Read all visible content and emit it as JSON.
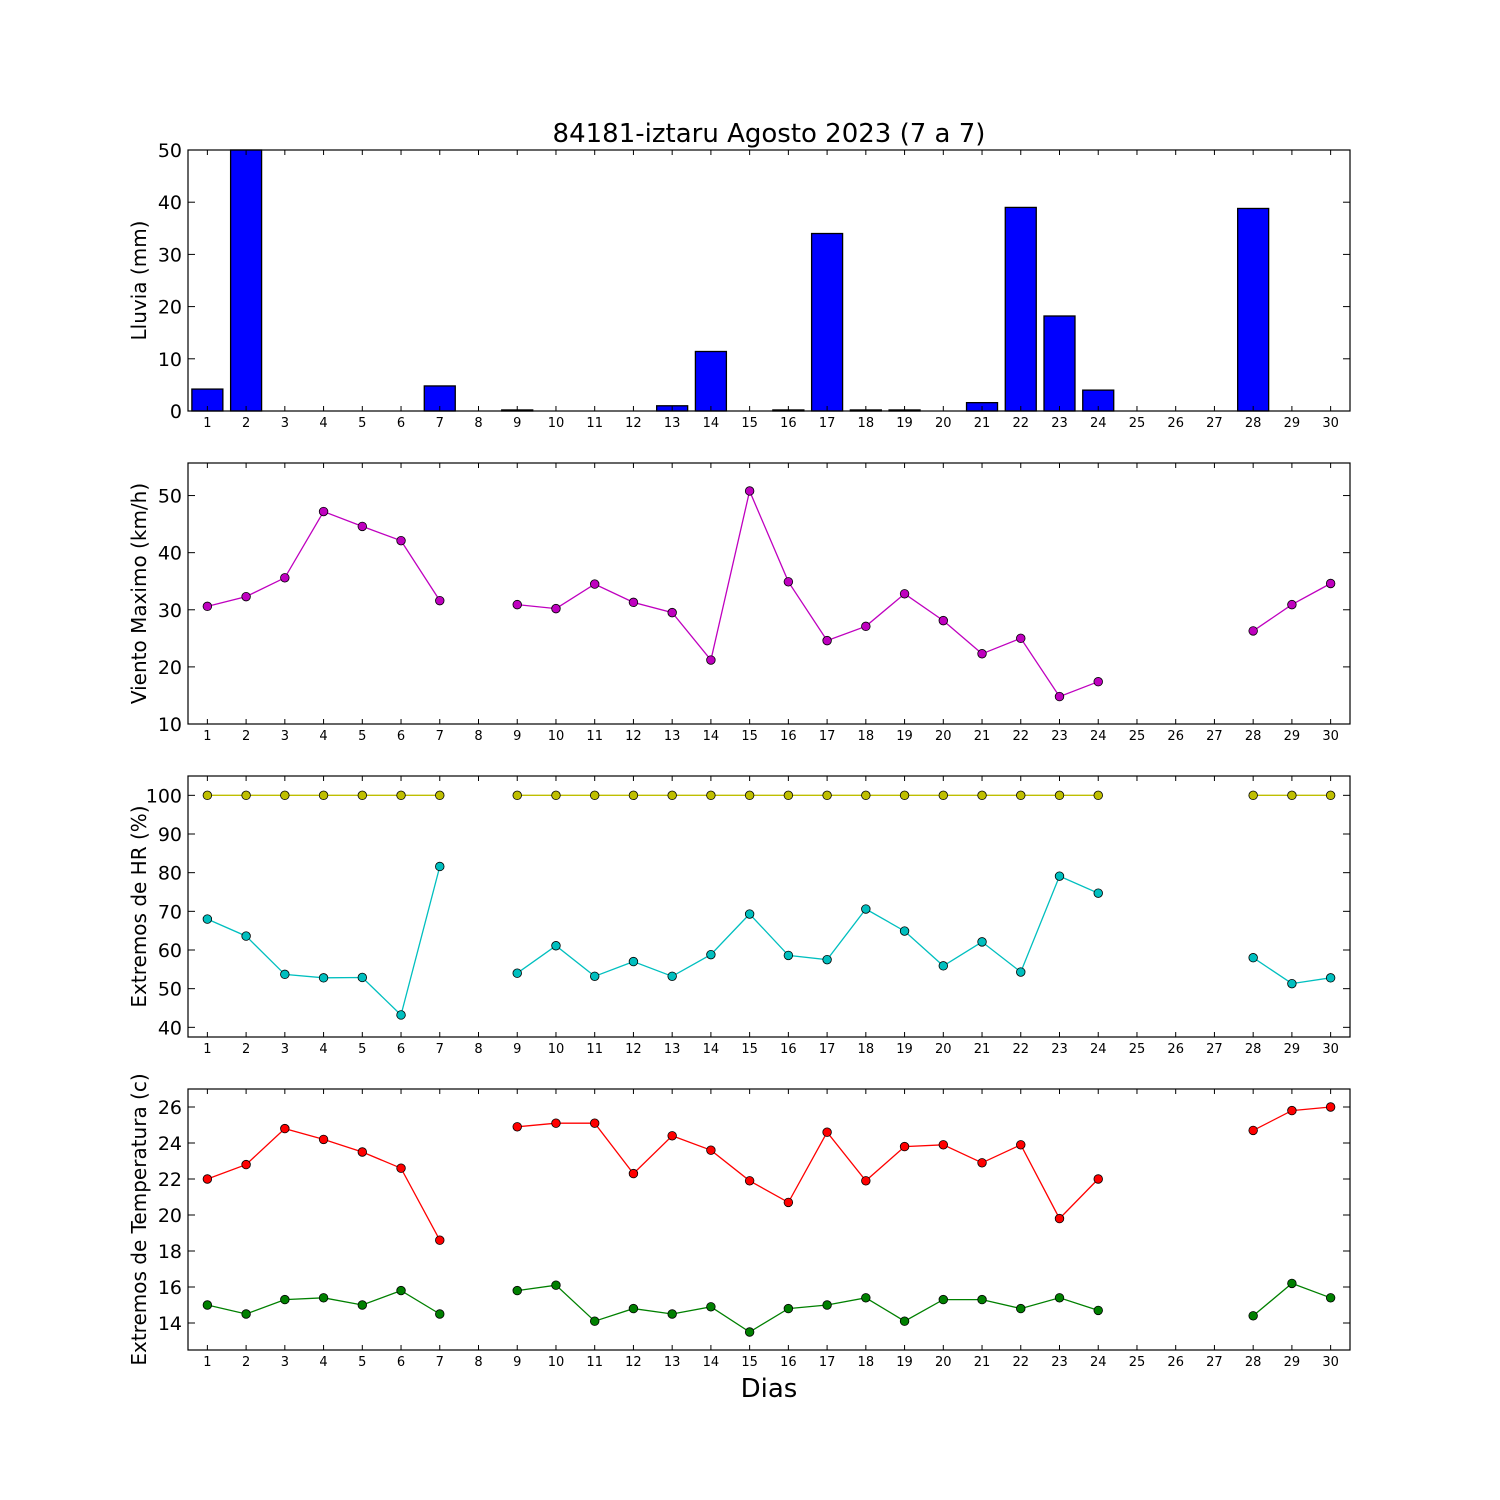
{
  "title": "84181-iztaru Agosto 2023  (7 a 7)",
  "xlabel": "Dias",
  "chart_data": [
    {
      "type": "bar",
      "ylabel": "Lluvia (mm)",
      "ylim": [
        0,
        50
      ],
      "yticks": [
        0,
        10,
        20,
        30,
        40,
        50
      ],
      "categories": [
        1,
        2,
        3,
        4,
        5,
        6,
        7,
        8,
        9,
        10,
        11,
        12,
        13,
        14,
        15,
        16,
        17,
        18,
        19,
        20,
        21,
        22,
        23,
        24,
        25,
        26,
        27,
        28,
        29,
        30
      ],
      "values": [
        4.2,
        50,
        0,
        0,
        0,
        0,
        4.8,
        null,
        0.2,
        0,
        0,
        0,
        1.0,
        11.4,
        0,
        0.2,
        34.0,
        0.2,
        0.2,
        0,
        1.6,
        39.0,
        18.2,
        4.0,
        null,
        null,
        null,
        38.8,
        0,
        0
      ],
      "colors": {
        "bar": "#0000ff"
      }
    },
    {
      "type": "line",
      "ylabel": "Viento Maximo (km/h)",
      "ylim": [
        10,
        55.7
      ],
      "yticks": [
        10,
        20,
        30,
        40,
        50
      ],
      "x": [
        1,
        2,
        3,
        4,
        5,
        6,
        7,
        8,
        9,
        10,
        11,
        12,
        13,
        14,
        15,
        16,
        17,
        18,
        19,
        20,
        21,
        22,
        23,
        24,
        25,
        26,
        27,
        28,
        29,
        30
      ],
      "series": [
        {
          "color": "#bf00bf",
          "values": [
            30.6,
            32.3,
            35.6,
            47.2,
            44.6,
            42.1,
            31.6,
            null,
            30.9,
            30.2,
            34.5,
            31.3,
            29.5,
            21.2,
            50.8,
            34.9,
            24.6,
            27.1,
            32.8,
            28.1,
            22.3,
            25.0,
            14.8,
            17.4,
            null,
            null,
            null,
            26.3,
            30.9,
            34.6
          ]
        }
      ]
    },
    {
      "type": "line",
      "ylabel": "Extremos de HR (%)",
      "ylim": [
        37.5,
        105
      ],
      "yticks": [
        40,
        50,
        60,
        70,
        80,
        90,
        100
      ],
      "x": [
        1,
        2,
        3,
        4,
        5,
        6,
        7,
        8,
        9,
        10,
        11,
        12,
        13,
        14,
        15,
        16,
        17,
        18,
        19,
        20,
        21,
        22,
        23,
        24,
        25,
        26,
        27,
        28,
        29,
        30
      ],
      "series": [
        {
          "color": "#bfbf00",
          "values": [
            100,
            100,
            100,
            100,
            100,
            100,
            100,
            null,
            100,
            100,
            100,
            100,
            100,
            100,
            100,
            100,
            100,
            100,
            100,
            100,
            100,
            100,
            100,
            100,
            null,
            null,
            null,
            100,
            100,
            100
          ]
        },
        {
          "color": "#00bfbf",
          "values": [
            68.0,
            63.6,
            53.7,
            52.8,
            52.9,
            43.2,
            81.6,
            null,
            54.0,
            61.1,
            53.2,
            57.0,
            53.2,
            58.8,
            69.3,
            58.6,
            57.5,
            70.6,
            64.9,
            55.9,
            62.1,
            54.3,
            79.1,
            74.7,
            null,
            null,
            null,
            58.0,
            51.3,
            52.8
          ]
        }
      ]
    },
    {
      "type": "line",
      "ylabel": "Extremos de Temperatura (c)",
      "ylim": [
        12.5,
        27
      ],
      "yticks": [
        14,
        16,
        18,
        20,
        22,
        24,
        26
      ],
      "x": [
        1,
        2,
        3,
        4,
        5,
        6,
        7,
        8,
        9,
        10,
        11,
        12,
        13,
        14,
        15,
        16,
        17,
        18,
        19,
        20,
        21,
        22,
        23,
        24,
        25,
        26,
        27,
        28,
        29,
        30
      ],
      "series": [
        {
          "color": "#ff0000",
          "values": [
            22.0,
            22.8,
            24.8,
            24.2,
            23.5,
            22.6,
            18.6,
            null,
            24.9,
            25.1,
            25.1,
            22.3,
            24.4,
            23.6,
            21.9,
            20.7,
            24.6,
            21.9,
            23.8,
            23.9,
            22.9,
            23.9,
            19.8,
            22.0,
            null,
            null,
            null,
            24.7,
            25.8,
            26.0
          ]
        },
        {
          "color": "#008000",
          "values": [
            15.0,
            14.5,
            15.3,
            15.4,
            15.0,
            15.8,
            14.5,
            null,
            15.8,
            16.1,
            14.1,
            14.8,
            14.5,
            14.9,
            13.5,
            14.8,
            15.0,
            15.4,
            14.1,
            15.3,
            15.3,
            14.8,
            15.4,
            14.7,
            null,
            null,
            null,
            14.4,
            16.2,
            15.4
          ]
        }
      ]
    }
  ]
}
